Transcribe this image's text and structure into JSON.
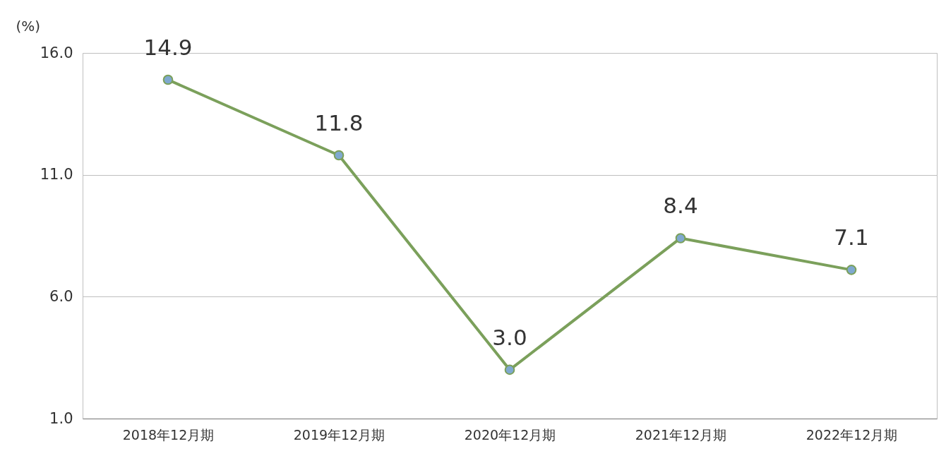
{
  "chart_data": {
    "type": "line",
    "ylabel": "(%)",
    "categories": [
      "2018年12月期",
      "2019年12月期",
      "2020年12月期",
      "2021年12月期",
      "2022年12月期"
    ],
    "series": [
      {
        "color": "#7ba05b",
        "values": [
          14.9,
          11.8,
          3.0,
          8.4,
          7.1
        ],
        "value_labels": [
          "14.9",
          "11.8",
          "3.0",
          "8.4",
          "7.1"
        ]
      }
    ],
    "ylim": [
      1,
      16
    ],
    "yticks": [
      {
        "value": 1,
        "label": "1.0"
      },
      {
        "value": 6,
        "label": "6.0"
      },
      {
        "value": 11,
        "label": "11.0"
      },
      {
        "value": 16,
        "label": "16.0"
      }
    ],
    "grid": "y",
    "marker": "circle",
    "line_style": "solid"
  }
}
